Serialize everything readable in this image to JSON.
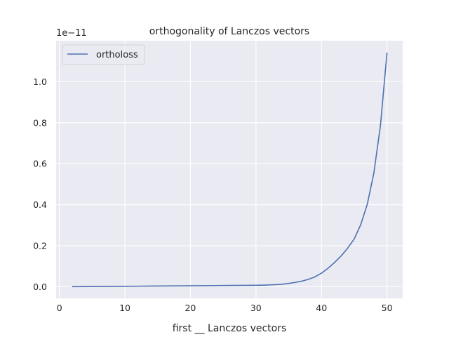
{
  "chart_data": {
    "type": "line",
    "title": "orthogonality of Lanczos vectors",
    "xlabel": "first __ Lanczos vectors",
    "ylabel": "",
    "y_offset_label": "1e−11",
    "xlim": [
      -0.5,
      52.4
    ],
    "ylim": [
      -0.057,
      1.2
    ],
    "x_ticks": [
      0,
      10,
      20,
      30,
      40,
      50
    ],
    "x_tick_labels": [
      "0",
      "10",
      "20",
      "30",
      "40",
      "50"
    ],
    "y_ticks": [
      0.0,
      0.2,
      0.4,
      0.6,
      0.8,
      1.0
    ],
    "y_tick_labels": [
      "0.0",
      "0.2",
      "0.4",
      "0.6",
      "0.8",
      "1.0"
    ],
    "grid": true,
    "legend_position": "top-left",
    "colors": {
      "background": "#eaeaf2",
      "grid": "#ffffff",
      "series": "#4c72b0"
    },
    "series": [
      {
        "name": "ortholoss",
        "x": [
          2,
          4,
          6,
          8,
          10,
          12,
          14,
          16,
          18,
          20,
          22,
          24,
          26,
          28,
          30,
          31,
          32,
          33,
          34,
          35,
          36,
          37,
          38,
          39,
          40,
          41,
          42,
          43,
          44,
          45,
          46,
          47,
          48,
          49,
          50
        ],
        "values": [
          0.0,
          0.0005,
          0.001,
          0.0015,
          0.002,
          0.0025,
          0.003,
          0.0035,
          0.004,
          0.0045,
          0.005,
          0.0055,
          0.006,
          0.0065,
          0.007,
          0.0075,
          0.0085,
          0.01,
          0.012,
          0.016,
          0.021,
          0.027,
          0.036,
          0.048,
          0.066,
          0.09,
          0.118,
          0.15,
          0.188,
          0.233,
          0.303,
          0.403,
          0.555,
          0.785,
          1.14
        ]
      }
    ]
  }
}
